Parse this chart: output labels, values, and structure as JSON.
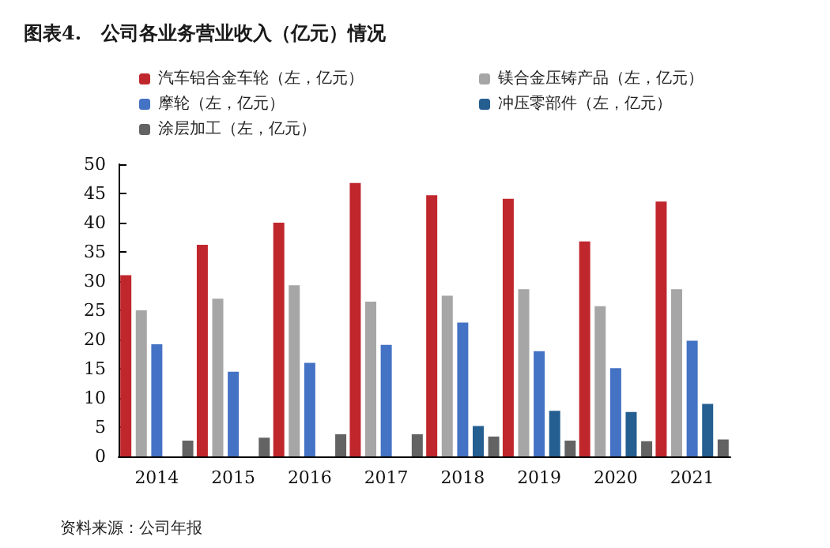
{
  "chart_data": {
    "type": "bar",
    "title": "图表4.   公司各业务营业收入（亿元）情况",
    "categories": [
      "2014",
      "2015",
      "2016",
      "2017",
      "2018",
      "2019",
      "2020",
      "2021"
    ],
    "series": [
      {
        "name": "汽车铝合金车轮（左，亿元）",
        "color": "#c0272d",
        "values": [
          31,
          36.2,
          40,
          46.8,
          44.7,
          44.1,
          36.8,
          43.6
        ]
      },
      {
        "name": "镁合金压铸产品（左，亿元）",
        "color": "#a6a6a6",
        "values": [
          25,
          27,
          29.3,
          26.5,
          27.5,
          28.6,
          25.7,
          28.6
        ]
      },
      {
        "name": "摩轮（左，亿元）",
        "color": "#4472c4",
        "values": [
          19.2,
          14.5,
          16,
          19.1,
          22.9,
          18,
          15.1,
          19.8
        ]
      },
      {
        "name": "冲压零部件（左，亿元）",
        "color": "#255e91",
        "values": [
          null,
          null,
          null,
          null,
          5.2,
          7.8,
          7.6,
          9
        ]
      },
      {
        "name": "涂层加工（左，亿元）",
        "color": "#636363",
        "values": [
          2.7,
          3.2,
          3.8,
          3.8,
          3.4,
          2.7,
          2.6,
          2.9
        ]
      }
    ],
    "ylim": [
      0,
      50
    ],
    "yticks": [
      0,
      5,
      10,
      15,
      20,
      25,
      30,
      35,
      40,
      45,
      50
    ],
    "grid": false,
    "legend": "top",
    "annotations": [
      "资料来源：公司年报"
    ]
  }
}
